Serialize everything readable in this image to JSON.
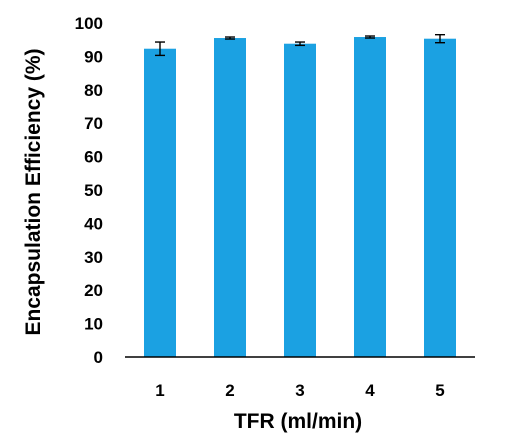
{
  "chart_data": {
    "type": "bar",
    "title": "",
    "xlabel": "TFR (ml/min)",
    "ylabel": "Encapsulation Efficiency (%)",
    "categories": [
      "1",
      "2",
      "3",
      "4",
      "5"
    ],
    "values": [
      92.3,
      95.5,
      93.8,
      95.8,
      95.3
    ],
    "errors": [
      2.0,
      0.3,
      0.5,
      0.3,
      1.2
    ],
    "ylim": [
      0,
      100
    ],
    "yticks": [
      0,
      10,
      20,
      30,
      40,
      50,
      60,
      70,
      80,
      90,
      100
    ],
    "grid": false,
    "legend": "none",
    "bar_color": "#1BA1E2",
    "axis_color": "#000000"
  }
}
